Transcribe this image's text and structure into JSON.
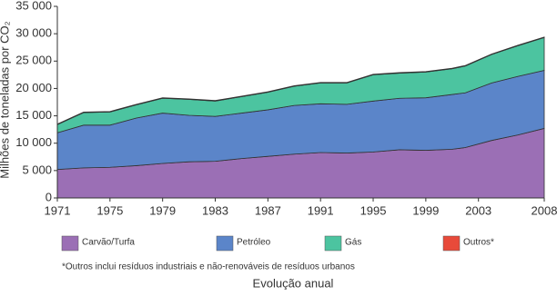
{
  "chart_data": {
    "type": "stacked_area",
    "y_label": "Milhões de toneladas por CO₂",
    "x_label": "Evolução anual",
    "footnote": "*Outros inclui resíduos industriais e não-renováveis de resíduos urbanos",
    "x": [
      1971,
      1973,
      1975,
      1977,
      1979,
      1981,
      1983,
      1985,
      1987,
      1989,
      1991,
      1993,
      1995,
      1997,
      1999,
      2001,
      2002,
      2004,
      2006,
      2008
    ],
    "series": [
      {
        "name": "Carvão/Turfa",
        "color": "#9b6fb5",
        "values": [
          5200,
          5500,
          5600,
          5900,
          6300,
          6600,
          6700,
          7200,
          7600,
          8000,
          8300,
          8200,
          8400,
          8800,
          8700,
          8900,
          9200,
          10500,
          11500,
          12700
        ]
      },
      {
        "name": "Petróleo",
        "color": "#5b85c9",
        "values": [
          6700,
          7800,
          7700,
          8700,
          9200,
          8500,
          8200,
          8300,
          8500,
          8900,
          8900,
          8900,
          9300,
          9400,
          9600,
          10000,
          10000,
          10500,
          10700,
          10600
        ]
      },
      {
        "name": "Gás",
        "color": "#4cc4a0",
        "values": [
          1500,
          2300,
          2400,
          2400,
          2700,
          2900,
          2800,
          3000,
          3200,
          3500,
          3800,
          3900,
          4800,
          4600,
          4700,
          4700,
          4900,
          5200,
          5600,
          6000
        ]
      },
      {
        "name": "Outros*",
        "color": "#e84a3a",
        "values": [
          100,
          100,
          100,
          100,
          100,
          100,
          100,
          100,
          100,
          100,
          100,
          100,
          100,
          100,
          100,
          100,
          100,
          100,
          100,
          100
        ]
      }
    ],
    "xlim": [
      1971,
      2008
    ],
    "xticks": [
      1971,
      1975,
      1979,
      1983,
      1987,
      1991,
      1995,
      1999,
      2003,
      2008
    ],
    "ylim": [
      0,
      35000
    ],
    "yticks": [
      0,
      {
        "value": 5000,
        "label": "5 000"
      },
      {
        "value": 10000,
        "label": "10 000"
      },
      {
        "value": 15000,
        "label": "15 000"
      },
      {
        "value": 20000,
        "label": "20 000"
      },
      {
        "value": 25000,
        "label": "25 000"
      },
      {
        "value": 30000,
        "label": "30 000"
      },
      {
        "value": 35000,
        "label": "35 000"
      }
    ]
  }
}
